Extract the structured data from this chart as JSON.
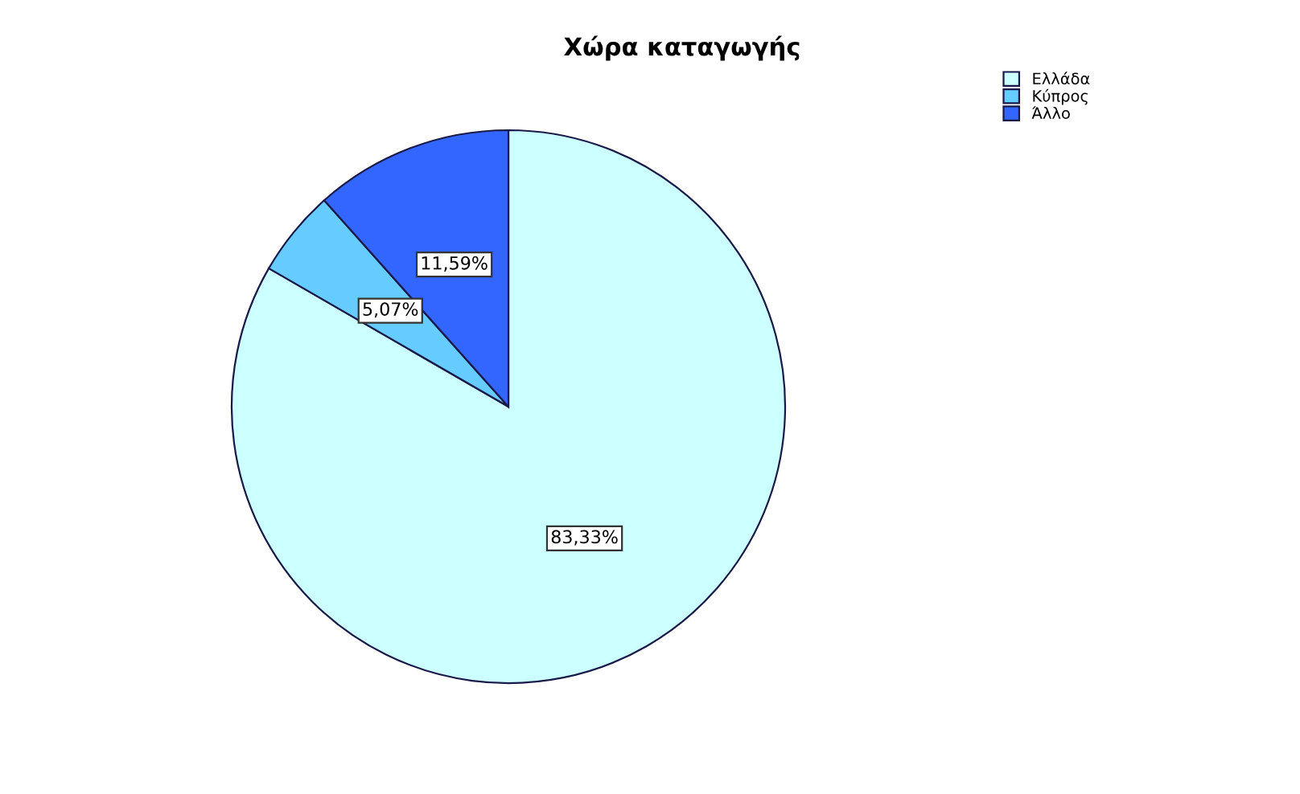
{
  "chart_data": {
    "type": "pie",
    "title": "Χώρα καταγωγής",
    "categories": [
      "Ελλάδα",
      "Κύπρος",
      "Άλλο"
    ],
    "values": [
      83.33,
      5.07,
      11.59
    ],
    "colors": [
      "#ccffff",
      "#66ccff",
      "#3366ff"
    ],
    "value_labels": [
      "83,33%",
      "5,07%",
      "11,59%"
    ],
    "legend": "top right"
  }
}
